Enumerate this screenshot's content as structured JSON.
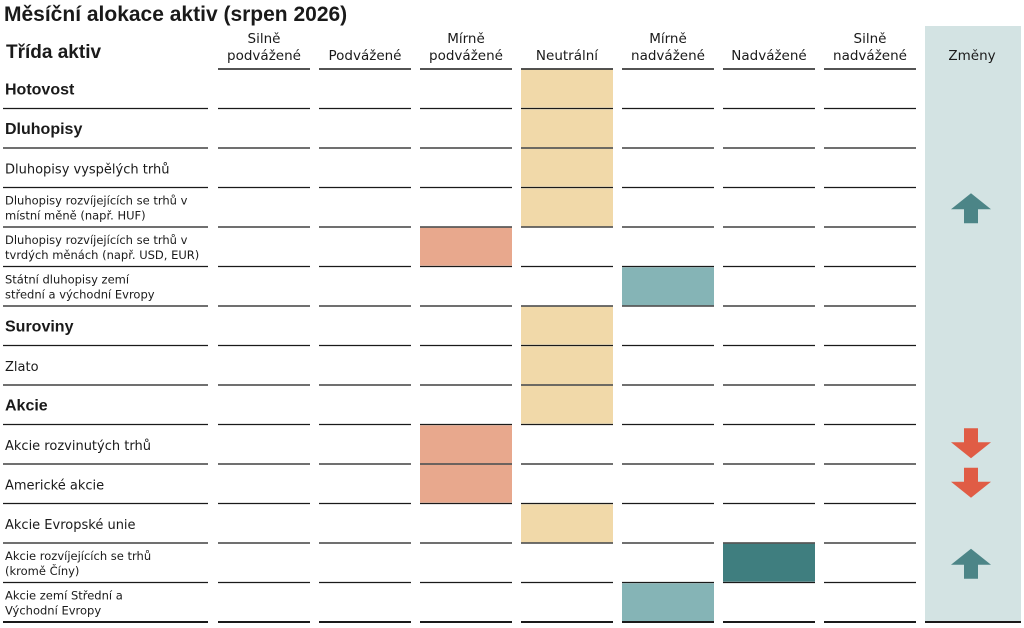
{
  "chart_data": {
    "type": "table",
    "title": "Měsíční alokace aktiv (srpen 2026)",
    "row_header": "Třída aktiv",
    "columns": [
      {
        "key": "strong_under",
        "lines": [
          "Silně",
          "podvážené"
        ]
      },
      {
        "key": "under",
        "lines": [
          "Podvážené"
        ]
      },
      {
        "key": "mild_under",
        "lines": [
          "Mírně",
          "podvážené"
        ]
      },
      {
        "key": "neutral",
        "lines": [
          "Neutrální"
        ]
      },
      {
        "key": "mild_over",
        "lines": [
          "Mírně",
          "nadvážené"
        ]
      },
      {
        "key": "over",
        "lines": [
          "Nadvážené"
        ]
      },
      {
        "key": "strong_over",
        "lines": [
          "Silně",
          "nadvážené"
        ]
      }
    ],
    "changes_header": "Změny",
    "rows": [
      {
        "lines": [
          "Hotovost"
        ],
        "bold": true,
        "position": "neutral",
        "change": null
      },
      {
        "lines": [
          "Dluhopisy"
        ],
        "bold": true,
        "position": "neutral",
        "change": null
      },
      {
        "lines": [
          "Dluhopisy vyspělých trhů"
        ],
        "bold": false,
        "position": "neutral",
        "change": null
      },
      {
        "lines": [
          "Dluhopisy rozvíjejících se trhů v",
          "místní měně (např. HUF)"
        ],
        "bold": false,
        "position": "neutral",
        "change": "up"
      },
      {
        "lines": [
          "Dluhopisy rozvíjejících se trhů v",
          "tvrdých měnách (např. USD, EUR)"
        ],
        "bold": false,
        "position": "mild_under",
        "change": null
      },
      {
        "lines": [
          "Státní dluhopisy zemí",
          "střední a východní Evropy"
        ],
        "bold": false,
        "position": "mild_over",
        "change": null
      },
      {
        "lines": [
          "Suroviny"
        ],
        "bold": true,
        "position": "neutral",
        "change": null
      },
      {
        "lines": [
          "Zlato"
        ],
        "bold": false,
        "position": "neutral",
        "change": null
      },
      {
        "lines": [
          "Akcie"
        ],
        "bold": true,
        "position": "neutral",
        "change": null
      },
      {
        "lines": [
          "Akcie rozvinutých trhů"
        ],
        "bold": false,
        "position": "mild_under",
        "change": "down"
      },
      {
        "lines": [
          "Americké akcie"
        ],
        "bold": false,
        "position": "mild_under",
        "change": "down"
      },
      {
        "lines": [
          "Akcie Evropské unie"
        ],
        "bold": false,
        "position": "neutral",
        "change": null
      },
      {
        "lines": [
          "Akcie rozvíjejících se trhů",
          "(kromě Číny)"
        ],
        "bold": false,
        "position": "over",
        "change": "up"
      },
      {
        "lines": [
          "Akcie zemí Střední a",
          "Východní Evropy"
        ],
        "bold": false,
        "position": "mild_over",
        "change": null
      }
    ],
    "colors": {
      "mild_under": "#e8a88d",
      "neutral": "#f1d9a9",
      "mild_over": "#85b4b6",
      "over": "#3f7e7f",
      "changes_band": "#d3e3e3",
      "arrow_up": "#4c8587",
      "arrow_down": "#e05c45",
      "rule": "#1a1a1a"
    }
  }
}
